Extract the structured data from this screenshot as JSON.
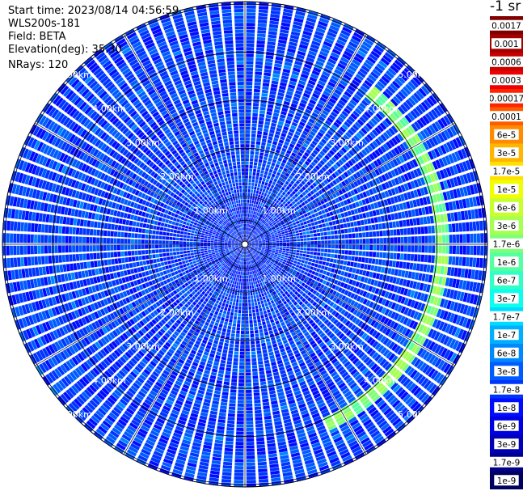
{
  "header": {
    "start_time": "Start time: 2023/08/14 04:56:59",
    "instrument": "WLS200s-181",
    "field": "Field: BETA",
    "elevation": "Elevation(deg): 35.30",
    "nrays": "NRays: 120"
  },
  "colorbar": {
    "unit_label": "-1 sr",
    "ticks": [
      "0.0017",
      "0.001",
      "0.0006",
      "0.0003",
      "0.00017",
      "0.0001",
      "6e-5",
      "3e-5",
      "1.7e-5",
      "1e-5",
      "6e-6",
      "3e-6",
      "1.7e-6",
      "1e-6",
      "6e-7",
      "3e-7",
      "1.7e-7",
      "1e-7",
      "6e-8",
      "3e-8",
      "1.7e-8",
      "1e-8",
      "6e-9",
      "3e-9",
      "1.7e-9",
      "1e-9"
    ],
    "colors": [
      "#800000",
      "#a30000",
      "#c70000",
      "#ee0000",
      "#ff2400",
      "#ff5b00",
      "#ff8c00",
      "#ffb600",
      "#ffe000",
      "#f0ff00",
      "#c9ff2e",
      "#a6ff51",
      "#7eff78",
      "#56ffa0",
      "#32ffc5",
      "#0bffec",
      "#00dcff",
      "#00b0ff",
      "#0088ff",
      "#005cff",
      "#0034ff",
      "#000cff",
      "#0000e4",
      "#0000b6",
      "#00008d",
      "#00005f"
    ],
    "ring_color": "#ffffff"
  },
  "range_labels": [
    "1.00km",
    "2.00km",
    "3.00km",
    "4.00km",
    "5.00km"
  ],
  "chart_data": {
    "type": "heatmap",
    "projection": "polar-ppi",
    "title": "",
    "field": "BETA",
    "units": "sr-1",
    "elevation_deg": 35.3,
    "nrays": 120,
    "range_rings_km": [
      1,
      2,
      3,
      4,
      5
    ],
    "max_range_km": 5.05,
    "color_scale": "log",
    "value_range": [
      1e-09,
      0.0017
    ],
    "background_level": "6e-8 to 3e-8",
    "features": [
      {
        "name": "enhanced aerosol ring",
        "range_km": 4.1,
        "azimuth_from_deg": 40,
        "azimuth_to_deg": 155,
        "value": "1.7e-7 to 3e-6"
      }
    ]
  }
}
